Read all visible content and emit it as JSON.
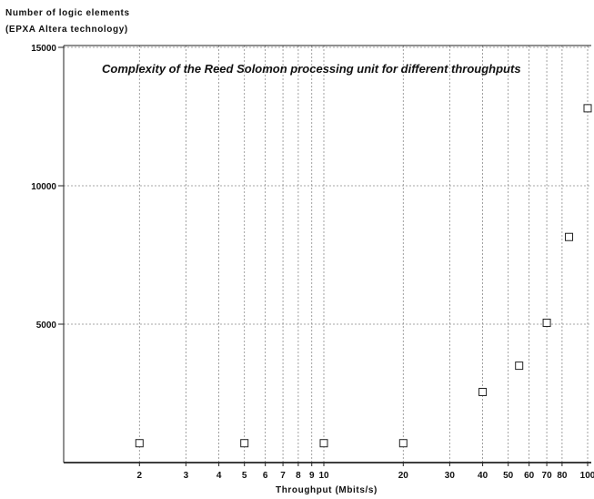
{
  "chart_data": {
    "type": "scatter",
    "title": "Complexity of the Reed Solomon processing unit for different throughputs",
    "ylabel_line1": "Number of logic elements",
    "ylabel_line2": "(EPXA Altera technology)",
    "xlabel": "Throughput (Mbits/s)",
    "x_scale": "log",
    "xlim": [
      1,
      100
    ],
    "ylim": [
      0,
      15000
    ],
    "x_ticks": [
      2,
      3,
      4,
      5,
      6,
      7,
      8,
      9,
      10,
      20,
      30,
      40,
      50,
      60,
      70,
      80,
      100
    ],
    "x_tick_labels": [
      "2",
      "3",
      "4",
      "5",
      "6",
      "7",
      "8",
      "9",
      "10",
      "20",
      "30",
      "40",
      "50",
      "60",
      "70",
      "80",
      "100"
    ],
    "y_ticks": [
      5000,
      10000,
      15000
    ],
    "y_tick_labels": [
      "5000",
      "10000",
      "15000"
    ],
    "grid": true,
    "marker": "square",
    "series": [
      {
        "x": [
          2,
          5,
          10,
          20,
          40,
          55,
          70,
          85,
          100
        ],
        "y": [
          700,
          700,
          700,
          700,
          2550,
          3500,
          5050,
          8150,
          12800
        ]
      }
    ]
  }
}
